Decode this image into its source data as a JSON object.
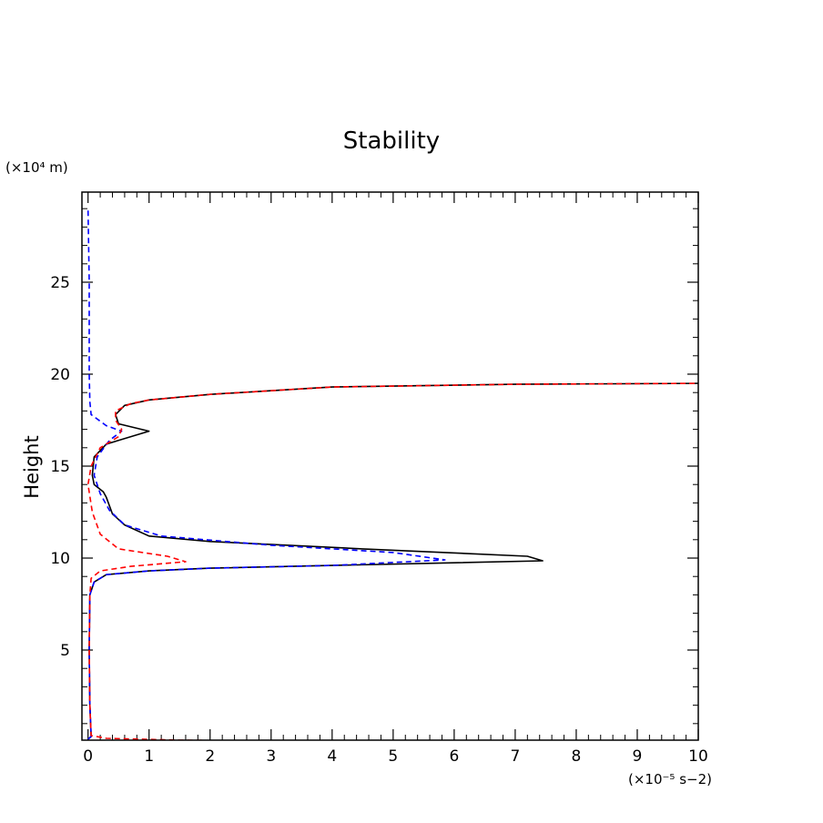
{
  "chart_data": {
    "type": "line",
    "title": "Stability",
    "ylabel": "Height",
    "xlabel": "",
    "y_unit": "(×10⁴ m)",
    "x_unit": "(×10⁻⁵ s−2)",
    "xlim": [
      -0.1,
      10
    ],
    "ylim": [
      0.1,
      29.9
    ],
    "x_ticks": [
      0,
      1,
      2,
      3,
      4,
      5,
      6,
      7,
      8,
      9,
      10
    ],
    "y_ticks": [
      5,
      10,
      15,
      20,
      25
    ],
    "grid": false,
    "legend": "none",
    "series": [
      {
        "color": "#000000",
        "dash": "solid",
        "points": [
          [
            0.0,
            0.15
          ],
          [
            0.05,
            0.3
          ],
          [
            0.03,
            2.0
          ],
          [
            0.02,
            5.0
          ],
          [
            0.03,
            8.0
          ],
          [
            0.1,
            8.7
          ],
          [
            0.3,
            9.1
          ],
          [
            1.0,
            9.3
          ],
          [
            2.0,
            9.45
          ],
          [
            4.0,
            9.6
          ],
          [
            7.45,
            9.85
          ],
          [
            7.2,
            10.1
          ],
          [
            4.5,
            10.5
          ],
          [
            2.0,
            10.9
          ],
          [
            1.0,
            11.2
          ],
          [
            0.6,
            11.8
          ],
          [
            0.4,
            12.4
          ],
          [
            0.3,
            13.3
          ],
          [
            0.25,
            13.6
          ],
          [
            0.1,
            14.0
          ],
          [
            0.07,
            14.5
          ],
          [
            0.1,
            15.5
          ],
          [
            0.3,
            16.2
          ],
          [
            1.0,
            16.9
          ],
          [
            0.5,
            17.3
          ],
          [
            0.45,
            17.8
          ],
          [
            0.6,
            18.3
          ],
          [
            1.0,
            18.6
          ],
          [
            2.0,
            18.9
          ],
          [
            4.0,
            19.3
          ],
          [
            7.0,
            19.45
          ],
          [
            10.0,
            19.5
          ]
        ]
      },
      {
        "color": "#0000ff",
        "dash": "dashed",
        "points": [
          [
            0.0,
            0.15
          ],
          [
            0.05,
            0.3
          ],
          [
            0.03,
            2.0
          ],
          [
            0.02,
            5.0
          ],
          [
            0.03,
            8.0
          ],
          [
            0.1,
            8.7
          ],
          [
            0.3,
            9.1
          ],
          [
            1.0,
            9.3
          ],
          [
            2.0,
            9.45
          ],
          [
            4.0,
            9.6
          ],
          [
            5.85,
            9.9
          ],
          [
            5.0,
            10.3
          ],
          [
            3.0,
            10.7
          ],
          [
            1.2,
            11.2
          ],
          [
            0.6,
            11.8
          ],
          [
            0.35,
            12.6
          ],
          [
            0.2,
            13.5
          ],
          [
            0.1,
            14.5
          ],
          [
            0.15,
            15.5
          ],
          [
            0.35,
            16.4
          ],
          [
            0.55,
            16.9
          ],
          [
            0.3,
            17.2
          ],
          [
            0.05,
            17.8
          ],
          [
            0.03,
            18.5
          ],
          [
            0.02,
            20.0
          ],
          [
            0.02,
            25.0
          ],
          [
            0.0,
            29.0
          ]
        ]
      },
      {
        "color": "#ff0000",
        "dash": "dashed",
        "points": [
          [
            4.7,
            0.0
          ],
          [
            1.5,
            0.1
          ],
          [
            0.3,
            0.2
          ],
          [
            0.05,
            0.35
          ],
          [
            0.03,
            2.0
          ],
          [
            0.02,
            5.0
          ],
          [
            0.03,
            8.0
          ],
          [
            0.05,
            8.9
          ],
          [
            0.2,
            9.3
          ],
          [
            0.7,
            9.55
          ],
          [
            1.6,
            9.8
          ],
          [
            1.3,
            10.1
          ],
          [
            0.5,
            10.5
          ],
          [
            0.2,
            11.3
          ],
          [
            0.07,
            12.5
          ],
          [
            0.0,
            14.0
          ],
          [
            0.05,
            15.0
          ],
          [
            0.2,
            16.0
          ],
          [
            0.5,
            16.6
          ],
          [
            0.55,
            17.0
          ],
          [
            0.45,
            17.5
          ],
          [
            0.45,
            18.0
          ],
          [
            0.7,
            18.4
          ],
          [
            1.0,
            18.6
          ],
          [
            2.0,
            18.9
          ],
          [
            4.0,
            19.3
          ],
          [
            7.0,
            19.45
          ],
          [
            10.0,
            19.5
          ]
        ]
      }
    ]
  }
}
